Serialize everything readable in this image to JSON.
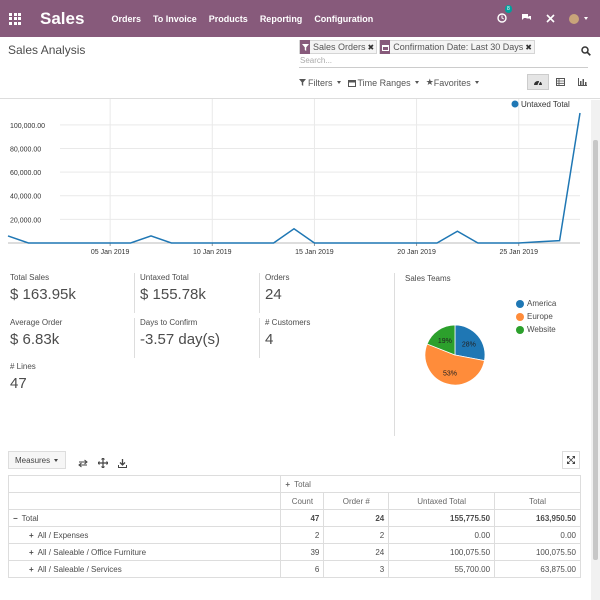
{
  "topbar": {
    "brand": "Sales",
    "menu": [
      "Orders",
      "To Invoice",
      "Products",
      "Reporting",
      "Configuration"
    ],
    "activity_count": "8"
  },
  "control_panel": {
    "title": "Sales Analysis",
    "facets": [
      {
        "label": "Sales Orders",
        "icon": "filter-icon"
      },
      {
        "label": "Confirmation Date: Last 30 Days",
        "icon": "calendar-icon"
      }
    ],
    "search_placeholder": "Search...",
    "options": [
      "Filters",
      "Time Ranges",
      "Favorites"
    ]
  },
  "chart_data": {
    "type": "line",
    "legend": "Untaxed Total",
    "legend_position": "top-right",
    "y_ticks": [
      "100,000.00",
      "80,000.00",
      "60,000.00",
      "40,000.00",
      "20,000.00"
    ],
    "x_ticks": [
      "05 Jan 2019",
      "10 Jan 2019",
      "15 Jan 2019",
      "20 Jan 2019",
      "25 Jan 2019"
    ],
    "ylim": [
      0,
      110000
    ],
    "grid": true,
    "color": "#1f77b4",
    "series": [
      {
        "name": "Untaxed Total",
        "x": [
          "31 Dec 2018",
          "01 Jan 2019",
          "02 Jan 2019",
          "03 Jan 2019",
          "04 Jan 2019",
          "05 Jan 2019",
          "06 Jan 2019",
          "07 Jan 2019",
          "08 Jan 2019",
          "09 Jan 2019",
          "10 Jan 2019",
          "11 Jan 2019",
          "12 Jan 2019",
          "13 Jan 2019",
          "14 Jan 2019",
          "15 Jan 2019",
          "16 Jan 2019",
          "17 Jan 2019",
          "18 Jan 2019",
          "19 Jan 2019",
          "20 Jan 2019",
          "21 Jan 2019",
          "22 Jan 2019",
          "23 Jan 2019",
          "24 Jan 2019",
          "25 Jan 2019",
          "26 Jan 2019",
          "27 Jan 2019",
          "28 Jan 2019"
        ],
        "values": [
          6000,
          0,
          0,
          0,
          0,
          0,
          0,
          6000,
          0,
          0,
          0,
          0,
          0,
          0,
          12000,
          0,
          0,
          0,
          0,
          0,
          0,
          0,
          10000,
          0,
          0,
          0,
          1000,
          2000,
          110000
        ]
      }
    ]
  },
  "kpis": [
    {
      "label": "Total Sales",
      "value": "$ 163.95k"
    },
    {
      "label": "Untaxed Total",
      "value": "$ 155.78k"
    },
    {
      "label": "Orders",
      "value": "24"
    },
    {
      "label": "Average Order",
      "value": "$ 6.83k"
    },
    {
      "label": "Days to Confirm",
      "value": "-3.57 day(s)"
    },
    {
      "label": "# Customers",
      "value": "4"
    },
    {
      "label": "# Lines",
      "value": "47"
    }
  ],
  "sales_teams": {
    "title": "Sales Teams",
    "slices": [
      {
        "name": "America",
        "pct": 28,
        "label": "28%",
        "color": "#1f77b4"
      },
      {
        "name": "Europe",
        "pct": 53,
        "label": "53%",
        "color": "#ff8c3a"
      },
      {
        "name": "Website",
        "pct": 19,
        "label": "19%",
        "color": "#2ca02c"
      }
    ]
  },
  "pivot": {
    "measures_label": "Measures",
    "col_header": "Total",
    "columns": [
      "Count",
      "Order #",
      "Untaxed Total",
      "Total"
    ],
    "total_row": {
      "label": "Total",
      "values": [
        "47",
        "24",
        "155,775.50",
        "163,950.50"
      ]
    },
    "rows": [
      {
        "label": "All / Expenses",
        "values": [
          "2",
          "2",
          "0.00",
          "0.00"
        ]
      },
      {
        "label": "All / Saleable / Office Furniture",
        "values": [
          "39",
          "24",
          "100,075.50",
          "100,075.50"
        ]
      },
      {
        "label": "All / Saleable / Services",
        "values": [
          "6",
          "3",
          "55,700.00",
          "63,875.00"
        ]
      }
    ]
  }
}
